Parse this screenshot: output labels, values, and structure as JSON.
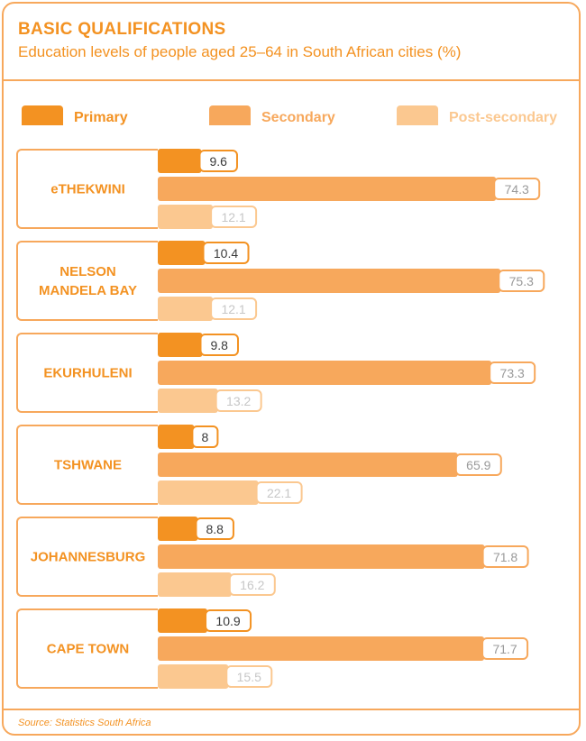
{
  "header": {
    "title": "BASIC QUALIFICATIONS",
    "subtitle": "Education levels of people aged 25–64 in South African cities (%)"
  },
  "legend": [
    {
      "label": "Primary",
      "color": "#F39222"
    },
    {
      "label": "Secondary",
      "color": "#F7A85C"
    },
    {
      "label": "Post-secondary",
      "color": "#FBC890"
    }
  ],
  "footer": {
    "source": "Source: Statistics South Africa"
  },
  "chart_data": {
    "type": "bar",
    "orientation": "horizontal",
    "categories": [
      "eTHEKWINI",
      "NELSON\nMANDELA BAY",
      "EKURHULENI",
      "TSHWANE",
      "JOHANNESBURG",
      "CAPE TOWN"
    ],
    "series": [
      {
        "name": "Primary",
        "values": [
          9.6,
          10.4,
          9.8,
          8,
          8.8,
          10.9
        ],
        "color": "#F39222"
      },
      {
        "name": "Secondary",
        "values": [
          74.3,
          75.3,
          73.3,
          65.9,
          71.8,
          71.7
        ],
        "color": "#F7A85C"
      },
      {
        "name": "Post-secondary",
        "values": [
          12.1,
          12.1,
          13.2,
          22.1,
          16.2,
          15.5
        ],
        "color": "#FBC890"
      }
    ],
    "value_labels": [
      [
        "9.6",
        "74.3",
        "12.1"
      ],
      [
        "10.4",
        "75.3",
        "12.1"
      ],
      [
        "9.8",
        "73.3",
        "13.2"
      ],
      [
        "8",
        "65.9",
        "22.1"
      ],
      [
        "8.8",
        "71.8",
        "16.2"
      ],
      [
        "10.9",
        "71.7",
        "15.5"
      ]
    ],
    "label_colors": [
      "#3a3a3a",
      "#9a9a9a",
      "#c7c7c7"
    ],
    "xlim": [
      0,
      100
    ],
    "grid": false,
    "legend_position": "top"
  }
}
